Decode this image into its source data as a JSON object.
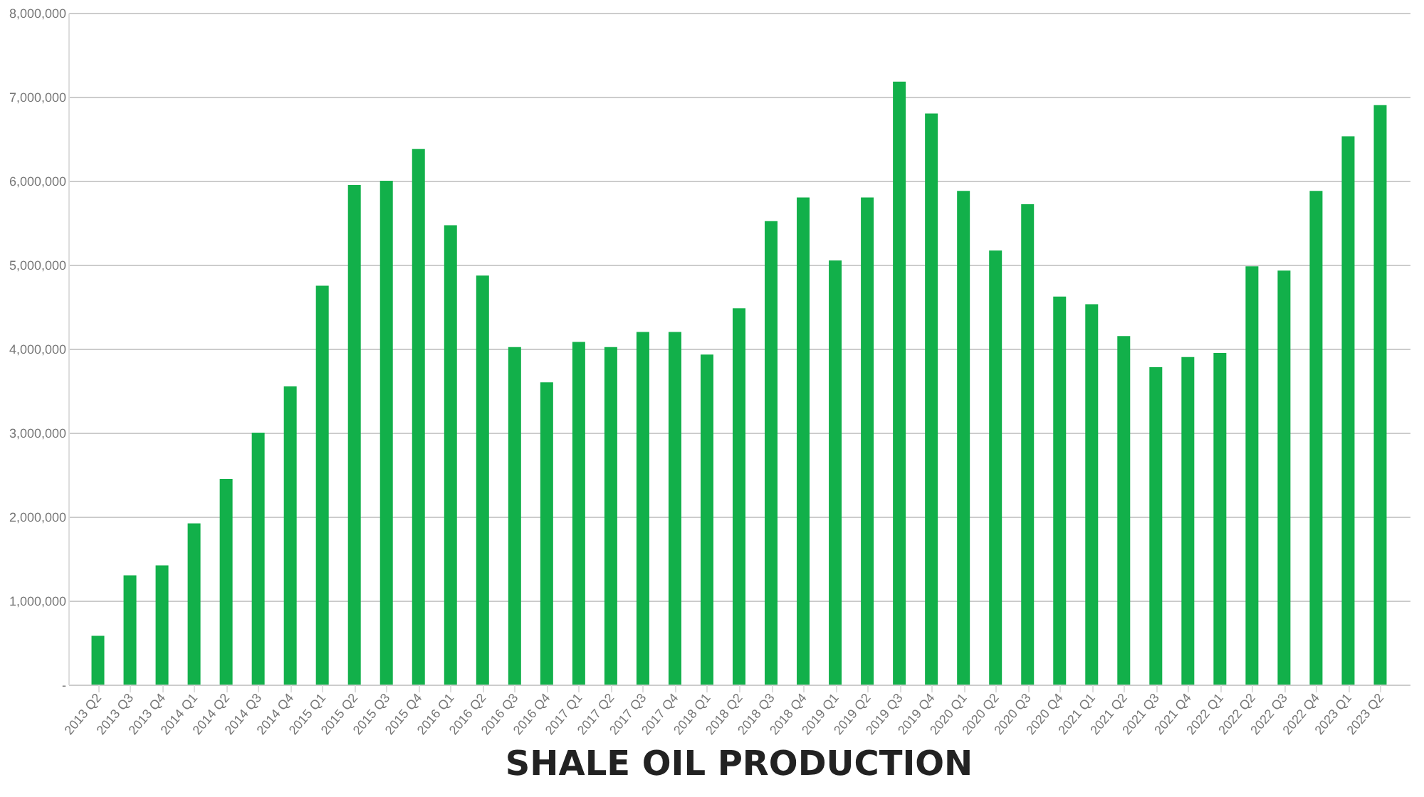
{
  "chart_data": {
    "type": "bar",
    "title": "SHALE OIL PRODUCTION",
    "categories": [
      "2013 Q2",
      "2013 Q3",
      "2013 Q4",
      "2014 Q1",
      "2014 Q2",
      "2014 Q3",
      "2014 Q4",
      "2015 Q1",
      "2015 Q2",
      "2015 Q3",
      "2015 Q4",
      "2016 Q1",
      "2016 Q2",
      "2016 Q3",
      "2016 Q4",
      "2017 Q1",
      "2017 Q2",
      "2017 Q3",
      "2017 Q4",
      "2018 Q1",
      "2018 Q2",
      "2018 Q3",
      "2018 Q4",
      "2019 Q1",
      "2019 Q2",
      "2019 Q3",
      "2019 Q4",
      "2020 Q1",
      "2020 Q2",
      "2020 Q3",
      "2020 Q4",
      "2021 Q1",
      "2021 Q2",
      "2021 Q3",
      "2021 Q4",
      "2022 Q1",
      "2022 Q2",
      "2022 Q3",
      "2022 Q4",
      "2023 Q1",
      "2023 Q2"
    ],
    "values": [
      580000,
      1300000,
      1420000,
      1920000,
      2450000,
      3000000,
      3550000,
      4750000,
      5950000,
      6000000,
      6380000,
      5470000,
      4870000,
      4020000,
      3600000,
      4080000,
      4020000,
      4200000,
      4200000,
      3930000,
      4480000,
      5520000,
      5800000,
      5050000,
      5800000,
      7180000,
      6800000,
      5880000,
      5170000,
      5720000,
      4620000,
      4530000,
      4150000,
      3780000,
      3900000,
      3950000,
      4980000,
      4930000,
      5880000,
      6530000,
      6900000
    ],
    "color": "#12b04a",
    "ylim": [
      0,
      8000000
    ],
    "yticks": [
      {
        "value": 0,
        "label": "-"
      },
      {
        "value": 1000000,
        "label": "1,000,000"
      },
      {
        "value": 2000000,
        "label": "2,000,000"
      },
      {
        "value": 3000000,
        "label": "3,000,000"
      },
      {
        "value": 4000000,
        "label": "4,000,000"
      },
      {
        "value": 5000000,
        "label": "5,000,000"
      },
      {
        "value": 6000000,
        "label": "6,000,000"
      },
      {
        "value": 7000000,
        "label": "7,000,000"
      },
      {
        "value": 8000000,
        "label": "8,000,000"
      }
    ],
    "grid": "y"
  }
}
